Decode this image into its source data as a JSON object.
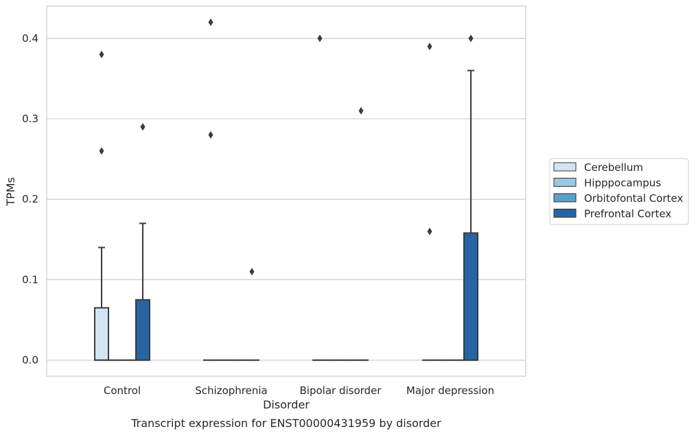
{
  "chart_data": {
    "type": "boxplot",
    "xlabel": "Disorder",
    "ylabel": "TPMs",
    "caption": "Transcript expression for ENST00000431959 by disorder",
    "ylim": [
      -0.02,
      0.44
    ],
    "yticks": [
      0.0,
      0.1,
      0.2,
      0.3,
      0.4
    ],
    "ytick_labels": [
      "0.0",
      "0.1",
      "0.2",
      "0.3",
      "0.4"
    ],
    "grid": "horizontal",
    "legend_position": "right",
    "categories": [
      "Control",
      "Schizophrenia",
      "Bipolar disorder",
      "Major depression"
    ],
    "series": [
      {
        "name": "Cerebellum",
        "color": "#d3e4f3",
        "boxes": [
          {
            "q1": 0.0,
            "median": 0.0,
            "q3": 0.065,
            "whisker_low": 0.0,
            "whisker_high": 0.14,
            "outliers": [
              0.38,
              0.26
            ]
          },
          {
            "q1": 0.0,
            "median": 0.0,
            "q3": 0.0,
            "whisker_low": 0.0,
            "whisker_high": 0.0,
            "outliers": [
              0.42,
              0.28
            ]
          },
          {
            "q1": 0.0,
            "median": 0.0,
            "q3": 0.0,
            "whisker_low": 0.0,
            "whisker_high": 0.0,
            "outliers": [
              0.4
            ]
          },
          {
            "q1": 0.0,
            "median": 0.0,
            "q3": 0.0,
            "whisker_low": 0.0,
            "whisker_high": 0.0,
            "outliers": [
              0.39,
              0.16
            ]
          }
        ]
      },
      {
        "name": "Hipppocampus",
        "color": "#9ac8e0",
        "boxes": [
          {
            "q1": 0.0,
            "median": 0.0,
            "q3": 0.0,
            "whisker_low": 0.0,
            "whisker_high": 0.0,
            "outliers": []
          },
          {
            "q1": 0.0,
            "median": 0.0,
            "q3": 0.0,
            "whisker_low": 0.0,
            "whisker_high": 0.0,
            "outliers": []
          },
          {
            "q1": 0.0,
            "median": 0.0,
            "q3": 0.0,
            "whisker_low": 0.0,
            "whisker_high": 0.0,
            "outliers": []
          },
          {
            "q1": 0.0,
            "median": 0.0,
            "q3": 0.0,
            "whisker_low": 0.0,
            "whisker_high": 0.0,
            "outliers": []
          }
        ]
      },
      {
        "name": "Orbitofontal Cortex",
        "color": "#5a9fcb",
        "boxes": [
          {
            "q1": 0.0,
            "median": 0.0,
            "q3": 0.0,
            "whisker_low": 0.0,
            "whisker_high": 0.0,
            "outliers": []
          },
          {
            "q1": 0.0,
            "median": 0.0,
            "q3": 0.0,
            "whisker_low": 0.0,
            "whisker_high": 0.0,
            "outliers": []
          },
          {
            "q1": 0.0,
            "median": 0.0,
            "q3": 0.0,
            "whisker_low": 0.0,
            "whisker_high": 0.0,
            "outliers": []
          },
          {
            "q1": 0.0,
            "median": 0.0,
            "q3": 0.0,
            "whisker_low": 0.0,
            "whisker_high": 0.0,
            "outliers": []
          }
        ]
      },
      {
        "name": "Prefrontal Cortex",
        "color": "#2565a3",
        "boxes": [
          {
            "q1": 0.0,
            "median": 0.0,
            "q3": 0.075,
            "whisker_low": 0.0,
            "whisker_high": 0.17,
            "outliers": [
              0.29
            ]
          },
          {
            "q1": 0.0,
            "median": 0.0,
            "q3": 0.0,
            "whisker_low": 0.0,
            "whisker_high": 0.0,
            "outliers": [
              0.11
            ]
          },
          {
            "q1": 0.0,
            "median": 0.0,
            "q3": 0.0,
            "whisker_low": 0.0,
            "whisker_high": 0.0,
            "outliers": [
              0.31
            ]
          },
          {
            "q1": 0.0,
            "median": 0.0,
            "q3": 0.158,
            "whisker_low": 0.0,
            "whisker_high": 0.36,
            "outliers": [
              0.4
            ]
          }
        ]
      }
    ],
    "colors": {
      "box_edge": "#3a3a3a",
      "grid": "#cccccc",
      "frame": "#cccccc",
      "text": "#262626"
    }
  }
}
